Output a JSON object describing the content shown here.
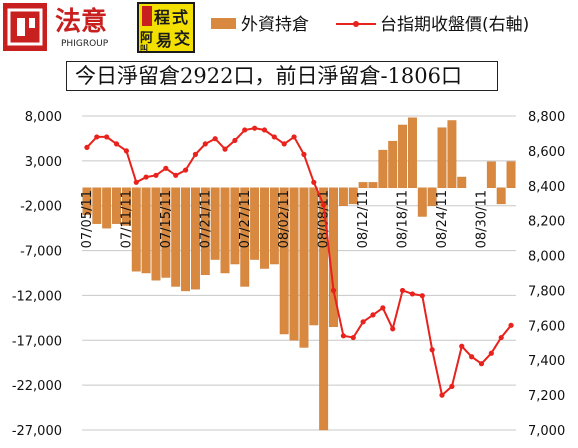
{
  "logo": {
    "brand_main": "法意",
    "brand_sub": "PHIGROUP",
    "badge_glyphs": [
      "程",
      "式",
      "交",
      "易",
      "阿",
      "叫"
    ],
    "brand_color": "#d12a2a",
    "badge_bg": "#f3e000"
  },
  "caption": "今日淨留倉2922口，前日淨留倉-1806口",
  "colors": {
    "bar": "#d9893f",
    "bar_edge": "#c9782f",
    "line": "#e8221c",
    "grid": "#c8c8c8",
    "axis_text": "#111111"
  },
  "chart_data": {
    "type": "bar+line",
    "legend": {
      "position": "top",
      "items": [
        "外資持倉",
        "台指期收盤價(右軸)"
      ]
    },
    "grid": true,
    "x_tick_labels": [
      "07/05/11",
      "07/11/11",
      "07/15/11",
      "07/21/11",
      "07/27/11",
      "08/02/11",
      "08/08/11",
      "08/12/11",
      "08/18/11",
      "08/24/11",
      "08/30/11"
    ],
    "x_tick_indices": [
      0,
      4,
      8,
      12,
      16,
      20,
      24,
      28,
      32,
      36,
      40
    ],
    "left_axis": {
      "min": -27000,
      "max": 8000,
      "step": 5000,
      "labels": [
        "8,000",
        "3,000",
        "-2,000",
        "-7,000",
        "-12,000",
        "-17,000",
        "-22,000",
        "-27,000"
      ]
    },
    "right_axis": {
      "min": 7000,
      "max": 8800,
      "step": 200,
      "labels": [
        "8,800",
        "8,600",
        "8,400",
        "8,200",
        "8,000",
        "7,800",
        "7,600",
        "7,400",
        "7,200",
        "7,000"
      ]
    },
    "series": [
      {
        "name": "外資持倉",
        "type": "bar",
        "axis": "left",
        "values": [
          -3000,
          -4000,
          -4500,
          -4000,
          -4200,
          -9300,
          -9500,
          -10300,
          -10000,
          -11000,
          -11500,
          -11300,
          -9700,
          -8000,
          -9500,
          -8500,
          -11000,
          -8000,
          -9000,
          -8500,
          -16300,
          -17000,
          -17800,
          -15300,
          -27000,
          -15500,
          -2000,
          -1800,
          600,
          600,
          4200,
          5200,
          7000,
          7800,
          -3200,
          -2000,
          6700,
          7500,
          1200,
          0,
          0,
          2900,
          -1800,
          2922
        ]
      },
      {
        "name": "台指期收盤價(右軸)",
        "type": "line",
        "axis": "right",
        "values": [
          8620,
          8680,
          8680,
          8640,
          8600,
          8420,
          8450,
          8460,
          8500,
          8460,
          8490,
          8580,
          8640,
          8670,
          8610,
          8660,
          8720,
          8730,
          8720,
          8680,
          8640,
          8680,
          8580,
          8420,
          8290,
          7800,
          7540,
          7530,
          7620,
          7660,
          7700,
          7580,
          7800,
          7780,
          7770,
          7460,
          7200,
          7250,
          7480,
          7420,
          7380,
          7440,
          7530,
          7600
        ]
      }
    ]
  }
}
